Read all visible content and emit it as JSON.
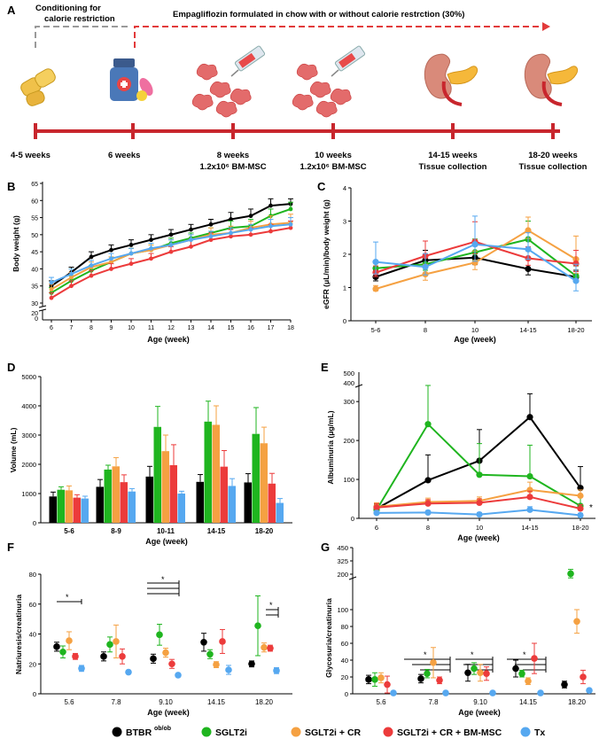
{
  "colors": {
    "btbr": "#000000",
    "sglt2i": "#1fb51f",
    "cr": "#f5a142",
    "msc": "#ec3b3b",
    "tx": "#56a8f0",
    "timeline": "#c8262d",
    "dash_red": "#e23a3a",
    "dash_grey": "#9a9a9a"
  },
  "panelA": {
    "letter": "A",
    "conditioning": [
      "Conditioning for",
      "calorie restriction"
    ],
    "empa": "Empagliflozin formulated in chow with or without calorie restrction (30%)",
    "timepoints": [
      {
        "t1": "4-5 weeks",
        "t2": ""
      },
      {
        "t1": "6 weeks",
        "t2": ""
      },
      {
        "t1": "8 weeks",
        "t2": "1.2x10⁶ BM-MSC"
      },
      {
        "t1": "10 weeks",
        "t2": "1.2x10⁶ BM-MSC"
      },
      {
        "t1": "14-15 weeks",
        "t2": "Tissue collection"
      },
      {
        "t1": "18-20 weeks",
        "t2": "Tissue collection"
      }
    ],
    "icons": [
      "chow-icon",
      "pill-bottle-icon",
      "cells-syringe-icon",
      "cells-syringe-icon",
      "kidney-icon",
      "kidney-icon"
    ]
  },
  "legend": {
    "items": [
      {
        "key": "btbr",
        "label": "BTBR",
        "sup": "ob/ob"
      },
      {
        "key": "sglt2i",
        "label": "SGLT2i",
        "sup": ""
      },
      {
        "key": "cr",
        "label": "SGLT2i + CR",
        "sup": ""
      },
      {
        "key": "msc",
        "label": "SGLT2i + CR + BM-MSC",
        "sup": ""
      },
      {
        "key": "tx",
        "label": "Tx",
        "sup": ""
      }
    ]
  },
  "chart_data": [
    {
      "id": "B",
      "letter": "B",
      "type": "line",
      "xlabel": "Age (week)",
      "ylabel": "Body weight (g)",
      "x": [
        6,
        7,
        8,
        9,
        10,
        11,
        12,
        13,
        14,
        15,
        16,
        17,
        18
      ],
      "yticks": [
        30,
        35,
        40,
        45,
        50,
        55,
        60,
        65
      ],
      "ylim": [
        30,
        65
      ],
      "break_ticks": [
        0,
        20
      ],
      "series": [
        {
          "key": "btbr",
          "values": [
            35,
            39,
            43.5,
            45.5,
            47,
            48.5,
            50,
            51.5,
            53,
            54.5,
            55.5,
            58.5,
            59
          ],
          "err": [
            1.5,
            1.5,
            1.5,
            1.5,
            1.5,
            1.5,
            1.5,
            1.5,
            1.5,
            2,
            2,
            2,
            1.5
          ]
        },
        {
          "key": "sglt2i",
          "values": [
            33,
            36.5,
            39.5,
            42,
            44.5,
            45.5,
            47.5,
            49,
            50.5,
            52,
            52.5,
            55.5,
            57.5
          ],
          "err": [
            1.5,
            1.5,
            1.5,
            1.5,
            1.5,
            1.5,
            1.5,
            1.5,
            1.5,
            2,
            2,
            2,
            2
          ]
        },
        {
          "key": "cr",
          "values": [
            34,
            37.5,
            40.5,
            42,
            44.5,
            45.5,
            47,
            48.5,
            50,
            50.5,
            52,
            53,
            53.5
          ],
          "err": [
            1.5,
            1.5,
            1.5,
            1.5,
            1.5,
            1.5,
            1.5,
            1.5,
            2,
            2,
            2,
            2.5,
            2.5
          ]
        },
        {
          "key": "msc",
          "values": [
            31.5,
            35,
            38,
            40,
            41.5,
            43,
            45,
            46.5,
            48.5,
            49.5,
            50,
            51,
            52
          ],
          "err": [
            1.5,
            1.5,
            1.5,
            1.5,
            1.5,
            1.5,
            1.5,
            2,
            2,
            2,
            2,
            2,
            2
          ]
        },
        {
          "key": "tx",
          "values": [
            36,
            38.5,
            41,
            43,
            44.5,
            46,
            47,
            48.5,
            49.5,
            50.5,
            51.5,
            52.5,
            53
          ],
          "err": [
            1.5,
            1.5,
            1.5,
            1.5,
            1.5,
            1.5,
            1.5,
            1.5,
            1.5,
            1.5,
            1.5,
            2,
            2
          ]
        }
      ]
    },
    {
      "id": "C",
      "letter": "C",
      "type": "line",
      "xlabel": "Age (week)",
      "ylabel": "eGFR (μL/min)/body weight (g)",
      "categories": [
        "5-6",
        "8",
        "10",
        "14-15",
        "18-20"
      ],
      "yticks": [
        0,
        1,
        2,
        3,
        4
      ],
      "ylim": [
        0,
        4
      ],
      "series": [
        {
          "key": "btbr",
          "values": [
            1.32,
            1.82,
            1.9,
            1.56,
            1.32
          ],
          "err": [
            0.2,
            0.3,
            0.35,
            0.3,
            0.2
          ]
        },
        {
          "key": "sglt2i",
          "values": [
            1.58,
            1.7,
            2.06,
            2.45,
            1.35
          ],
          "err": [
            0.2,
            0.3,
            0.4,
            0.55,
            0.3
          ]
        },
        {
          "key": "cr",
          "values": [
            0.96,
            1.4,
            1.75,
            2.72,
            1.85
          ],
          "err": [
            0.1,
            0.3,
            0.35,
            0.4,
            0.7
          ]
        },
        {
          "key": "msc",
          "values": [
            1.45,
            1.95,
            2.38,
            1.88,
            1.72
          ],
          "err": [
            0.2,
            0.45,
            0.6,
            0.35,
            0.4
          ]
        },
        {
          "key": "tx",
          "values": [
            1.77,
            1.62,
            2.3,
            2.15,
            1.2
          ],
          "err": [
            0.6,
            0.4,
            0.85,
            0.5,
            0.5
          ]
        }
      ]
    },
    {
      "id": "D",
      "letter": "D",
      "type": "bar",
      "xlabel": "Age (week)",
      "ylabel": "Volume (mL)",
      "categories": [
        "5-6",
        "8-9",
        "10-11",
        "14-15",
        "18-20"
      ],
      "yticks": [
        0,
        1000,
        2000,
        3000,
        4000,
        5000
      ],
      "ylim": [
        0,
        5000
      ],
      "series": [
        {
          "key": "btbr",
          "values": [
            900,
            1230,
            1580,
            1400,
            1380
          ],
          "err": [
            150,
            250,
            350,
            250,
            300
          ]
        },
        {
          "key": "sglt2i",
          "values": [
            1130,
            1820,
            3280,
            3460,
            3040
          ],
          "err": [
            100,
            150,
            700,
            700,
            900
          ]
        },
        {
          "key": "cr",
          "values": [
            1110,
            1930,
            2450,
            3350,
            2720
          ],
          "err": [
            150,
            300,
            550,
            650,
            550
          ]
        },
        {
          "key": "msc",
          "values": [
            860,
            1390,
            1970,
            1920,
            1340
          ],
          "err": [
            100,
            250,
            700,
            550,
            350
          ]
        },
        {
          "key": "tx",
          "values": [
            830,
            1070,
            1000,
            1260,
            680
          ],
          "err": [
            80,
            100,
            80,
            250,
            150
          ]
        }
      ]
    },
    {
      "id": "E",
      "letter": "E",
      "type": "line",
      "xlabel": "Age (week)",
      "ylabel": "Albuminuria (μg/mL)",
      "categories": [
        "6",
        "8",
        "10",
        "14-15",
        "18-20"
      ],
      "yticks": [
        0,
        100,
        200,
        300
      ],
      "top_ticks": [
        400,
        500
      ],
      "ylim": [
        0,
        330
      ],
      "annotation": "*",
      "series": [
        {
          "key": "btbr",
          "values": [
            25,
            98,
            148,
            260,
            78
          ],
          "err": [
            10,
            65,
            80,
            60,
            55
          ]
        },
        {
          "key": "sglt2i",
          "values": [
            22,
            242,
            112,
            108,
            32
          ],
          "err": [
            15,
            120,
            80,
            80,
            25
          ]
        },
        {
          "key": "cr",
          "values": [
            30,
            42,
            45,
            73,
            58
          ],
          "err": [
            10,
            10,
            10,
            20,
            15
          ]
        },
        {
          "key": "msc",
          "values": [
            28,
            38,
            40,
            55,
            25
          ],
          "err": [
            10,
            10,
            10,
            15,
            10
          ]
        },
        {
          "key": "tx",
          "values": [
            14,
            15,
            10,
            22,
            8
          ],
          "err": [
            5,
            5,
            5,
            8,
            5
          ]
        }
      ]
    },
    {
      "id": "F",
      "letter": "F",
      "type": "scatter",
      "xlabel": "Age (week)",
      "ylabel": "Natriuresis/creatinuria",
      "categories": [
        "5.6",
        "7.8",
        "9.10",
        "14.15",
        "18.20"
      ],
      "yticks": [
        0,
        20,
        40,
        60,
        80
      ],
      "ylim": [
        0,
        80
      ],
      "sig": [
        "*",
        "*",
        "*"
      ],
      "series": [
        {
          "key": "btbr",
          "values": [
            31.5,
            25,
            23.5,
            34.5,
            20
          ],
          "err": [
            3,
            3,
            3,
            6,
            2
          ]
        },
        {
          "key": "sglt2i",
          "values": [
            28,
            33,
            39.5,
            26.5,
            45.5
          ],
          "err": [
            4,
            5,
            7,
            3,
            20
          ]
        },
        {
          "key": "cr",
          "values": [
            35.5,
            35,
            27.5,
            19.5,
            31
          ],
          "err": [
            6,
            11,
            3,
            2,
            3
          ]
        },
        {
          "key": "msc",
          "values": [
            25,
            25,
            20,
            35,
            30.5
          ],
          "err": [
            2,
            5,
            3,
            8,
            2
          ]
        },
        {
          "key": "tx",
          "values": [
            17,
            14.5,
            12.5,
            16,
            15.5
          ],
          "err": [
            2,
            1,
            1,
            3,
            2
          ]
        }
      ]
    },
    {
      "id": "G",
      "letter": "G",
      "type": "scatter",
      "xlabel": "Age (week)",
      "ylabel": "Glycosuria/creatinuria",
      "categories": [
        "5.6",
        "7.8",
        "9.10",
        "14.15",
        "18.20"
      ],
      "yticks": [
        0,
        20,
        40,
        60,
        80,
        100
      ],
      "top_ticks": [
        200,
        325,
        450
      ],
      "sig": [
        "*",
        "*",
        "*"
      ],
      "series": [
        {
          "key": "btbr",
          "values": [
            17,
            18,
            25,
            30,
            11
          ],
          "err": [
            5,
            5,
            10,
            10,
            4
          ]
        },
        {
          "key": "sglt2i",
          "values": [
            17,
            24,
            30,
            24,
            205
          ],
          "err": [
            8,
            5,
            7,
            4,
            40
          ]
        },
        {
          "key": "cr",
          "values": [
            19,
            37,
            25,
            15,
            86
          ],
          "err": [
            6,
            18,
            10,
            4,
            14
          ]
        },
        {
          "key": "msc",
          "values": [
            11,
            16,
            24,
            42,
            20
          ],
          "err": [
            10,
            4,
            8,
            18,
            8
          ]
        },
        {
          "key": "tx",
          "values": [
            1,
            1,
            1,
            1,
            4
          ],
          "err": [
            0,
            0,
            0,
            0,
            0
          ]
        }
      ]
    }
  ]
}
